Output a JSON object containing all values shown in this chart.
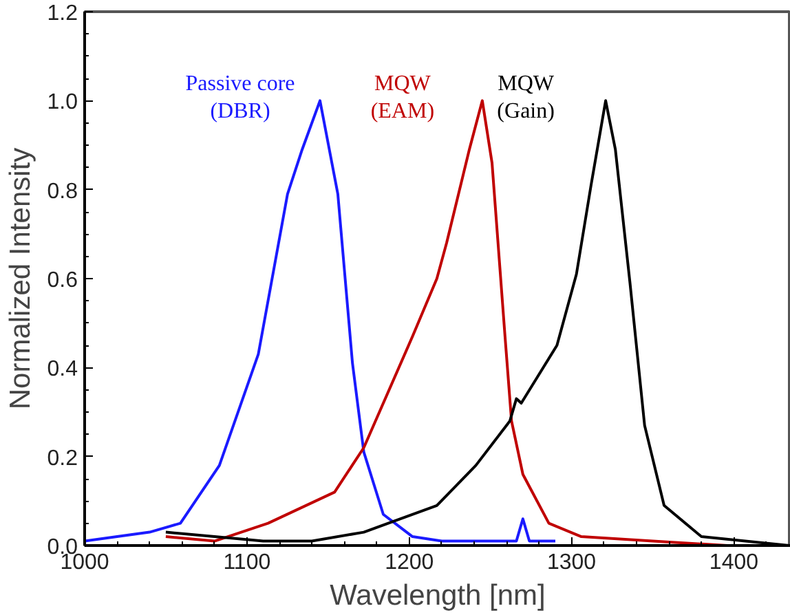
{
  "chart_data": {
    "type": "line",
    "xlabel": "Wavelength [nm]",
    "ylabel": "Normalized Intensity",
    "xlim": [
      1000,
      1435
    ],
    "ylim": [
      0,
      1.2
    ],
    "xticks": [
      1000,
      1100,
      1200,
      1300,
      1400
    ],
    "yticks": [
      {
        "value": 0,
        "label": "0.0"
      },
      {
        "value": 0.2,
        "label": "0.2"
      },
      {
        "value": 0.4,
        "label": "0.4"
      },
      {
        "value": 0.6,
        "label": "0.6"
      },
      {
        "value": 0.8,
        "label": "0.8"
      },
      {
        "value": 1.0,
        "label": "1.0"
      },
      {
        "value": 1.2,
        "label": "1.2"
      }
    ],
    "grid": false,
    "legend": false,
    "marker": "none",
    "line_style": "solid",
    "series": [
      {
        "name": "Passive core\n(DBR)",
        "color": "#1a1aff",
        "x": [
          1000,
          1020,
          1040,
          1059,
          1083,
          1107,
          1125,
          1134,
          1145,
          1156,
          1165,
          1172,
          1184,
          1202,
          1220,
          1250,
          1266,
          1270,
          1274,
          1290
        ],
        "values": [
          0.01,
          0.02,
          0.03,
          0.05,
          0.18,
          0.43,
          0.79,
          0.89,
          1.0,
          0.79,
          0.41,
          0.21,
          0.07,
          0.02,
          0.01,
          0.01,
          0.01,
          0.06,
          0.01,
          0.01
        ]
      },
      {
        "name": "MQW\n(EAM)",
        "color": "#c00000",
        "x": [
          1050,
          1080,
          1113,
          1154,
          1172,
          1202,
          1217,
          1223,
          1237,
          1245,
          1251,
          1259,
          1263,
          1270,
          1286,
          1306,
          1350,
          1396
        ],
        "values": [
          0.02,
          0.01,
          0.05,
          0.12,
          0.22,
          0.47,
          0.6,
          0.68,
          0.89,
          1.0,
          0.86,
          0.47,
          0.28,
          0.16,
          0.05,
          0.02,
          0.01,
          0.0
        ]
      },
      {
        "name": "MQW\n(Gain)",
        "color": "#000000",
        "x": [
          1050,
          1080,
          1110,
          1140,
          1172,
          1217,
          1241,
          1262,
          1266,
          1269,
          1291,
          1303,
          1312,
          1321,
          1327,
          1336,
          1345,
          1357,
          1380,
          1434
        ],
        "values": [
          0.03,
          0.02,
          0.01,
          0.01,
          0.03,
          0.09,
          0.18,
          0.28,
          0.33,
          0.32,
          0.45,
          0.61,
          0.81,
          1.0,
          0.89,
          0.59,
          0.27,
          0.09,
          0.02,
          0.0
        ]
      }
    ]
  }
}
